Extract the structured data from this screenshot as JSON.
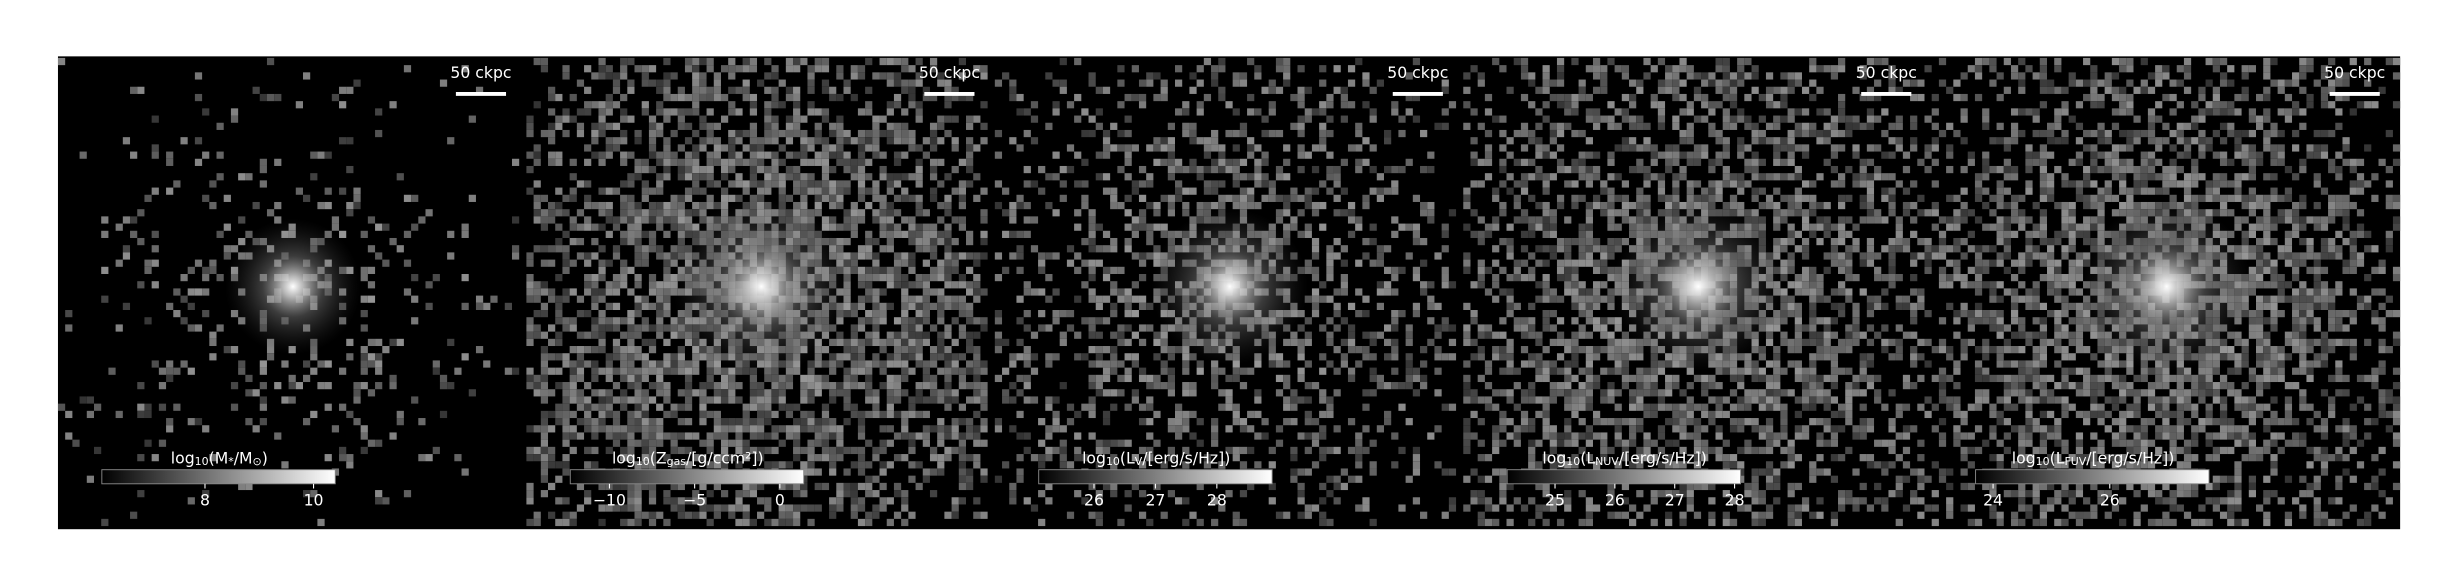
{
  "panels": [
    {
      "scalebar": "50 ckpc",
      "label": [
        "log",
        "10",
        "(M",
        "*",
        "/M",
        "⊙",
        ")"
      ],
      "clim": [
        6.1,
        10.4
      ],
      "ticks": [
        8,
        10
      ],
      "extent": 0.7,
      "noise": 0.25
    },
    {
      "scalebar": "50 ckpc",
      "label": [
        "log",
        "10",
        "(Z",
        "gas",
        "/[g/ccm²])"
      ],
      "clim": [
        -12.3,
        1.4
      ],
      "ticks": [
        {
          "value": -10,
          "label": "−10"
        },
        {
          "value": -5,
          "label": "−5"
        },
        0
      ],
      "extent": 1.3,
      "noise": 0.8
    },
    {
      "scalebar": "50 ckpc",
      "label": [
        "log",
        "10",
        "(L",
        "V",
        "/[erg/s/Hz])"
      ],
      "clim": [
        25.1,
        28.9
      ],
      "ticks": [
        26,
        27,
        28
      ],
      "extent": 1.0,
      "noise": 0.55
    },
    {
      "scalebar": "50 ckpc",
      "label": [
        "log",
        "10",
        "(L",
        "NUV",
        "/[erg/s/Hz])"
      ],
      "clim": [
        24.2,
        28.1
      ],
      "ticks": [
        25,
        26,
        27,
        28
      ],
      "extent": 1.2,
      "noise": 0.7
    },
    {
      "scalebar": "50 ckpc",
      "label": [
        "log",
        "10",
        "(L",
        "FUV",
        "/[erg/s/Hz])"
      ],
      "clim": [
        23.7,
        27.7
      ],
      "ticks": [
        24,
        26
      ],
      "extent": 1.2,
      "noise": 0.75
    }
  ]
}
